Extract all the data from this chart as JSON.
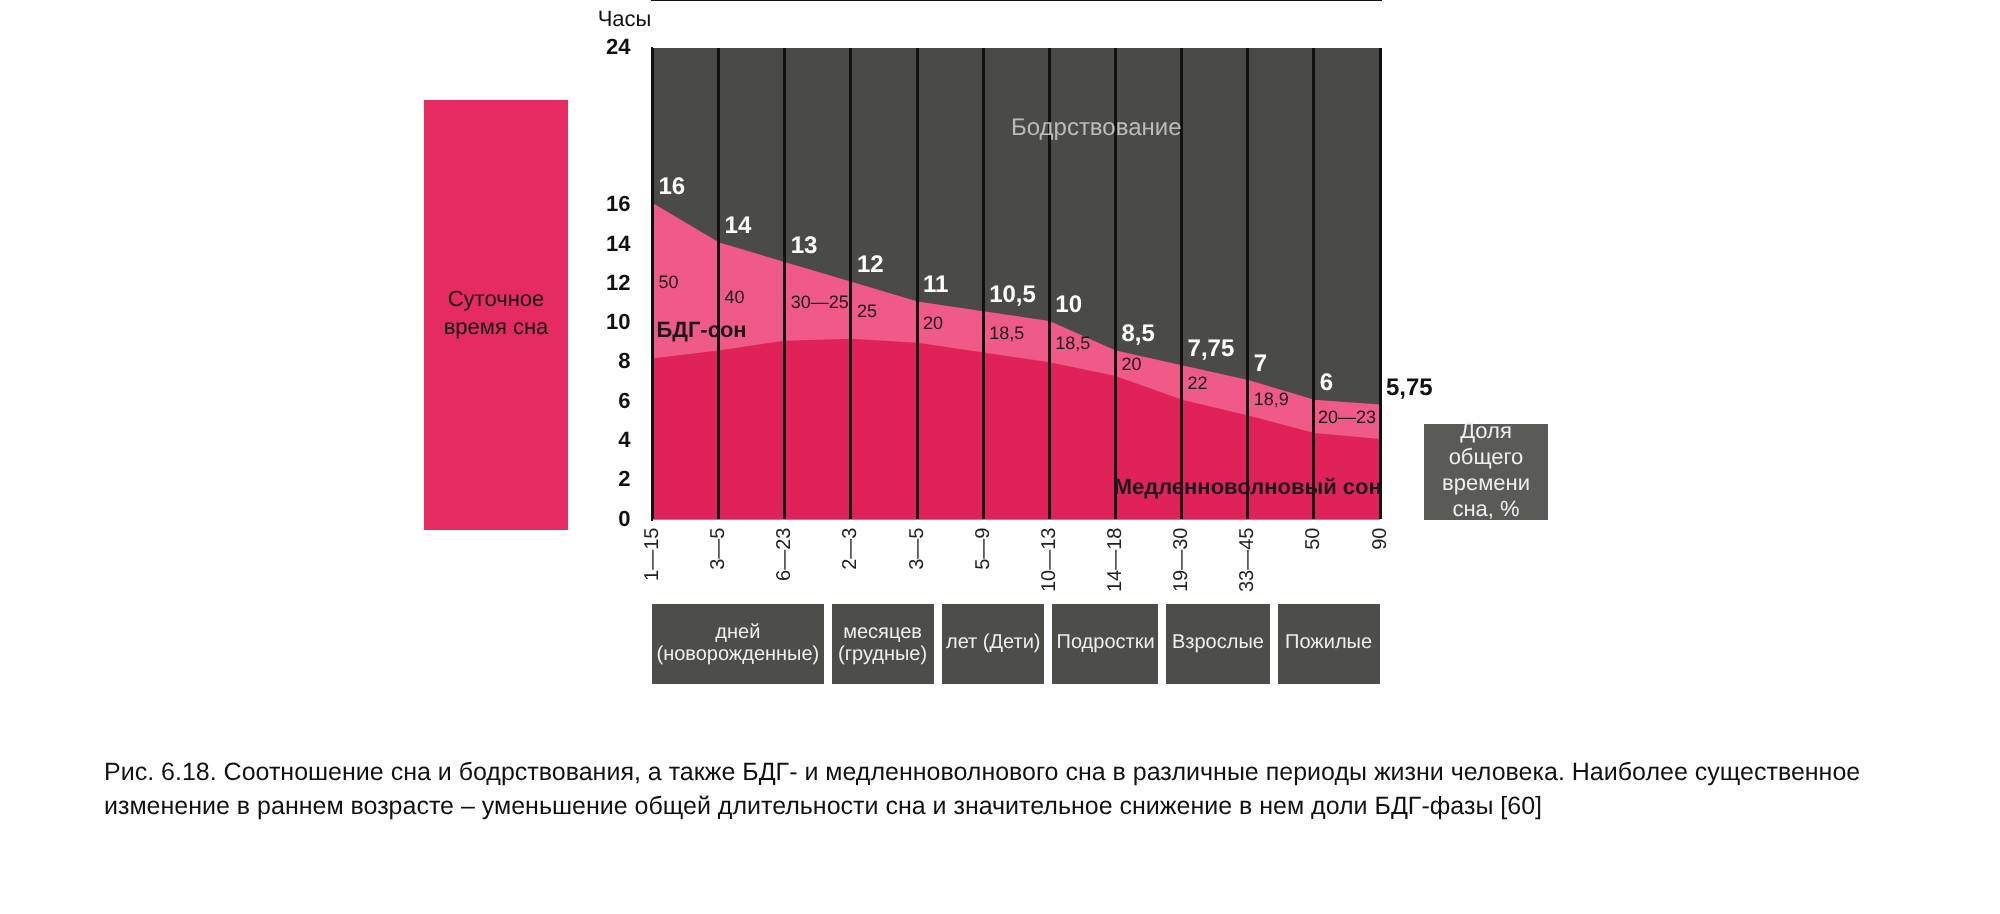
{
  "chart_data": {
    "type": "area",
    "title": "Рис. 6.18. Соотношение сна и бодрствования, а также БДГ- и медленноволнового сна в различные периоды жизни человека. Наиболее существенное изменение в раннем возрасте – уменьшение общей длительности сна и значительное снижение в нем доли БДГ-фазы [60]",
    "ylabel": "Часы",
    "categories": [
      "1—15",
      "3—5",
      "6—23",
      "2—3",
      "3—5",
      "5—9",
      "10—13",
      "14—18",
      "19—30",
      "33—45",
      "50",
      "90"
    ],
    "series": [
      {
        "name": "Медленноволновый сон",
        "color": "#e0215a",
        "values": [
          8.1,
          8.5,
          9.0,
          9.1,
          8.9,
          8.4,
          7.9,
          7.2,
          6.0,
          5.2,
          4.3,
          4.0
        ]
      },
      {
        "name": "БДГ-сон",
        "color": "#ef5a86",
        "values": [
          7.9,
          5.5,
          4.0,
          2.9,
          2.1,
          2.1,
          2.1,
          1.3,
          1.75,
          1.8,
          1.7,
          1.75
        ]
      }
    ],
    "totals": [
      "16",
      "14",
      "13",
      "12",
      "11",
      "10,5",
      "10",
      "8,5",
      "7,75",
      "7",
      "6",
      "5,75"
    ],
    "stacked": true,
    "ylim": [
      0,
      24
    ],
    "yticks": [
      0,
      2,
      4,
      6,
      8,
      10,
      12,
      14,
      16,
      24
    ],
    "grid": "x",
    "legend": false,
    "annotations": [
      "Бодрствование",
      "Суточное время сна",
      "Доля общего времени сна, %",
      "дней (новорожденные)",
      "месяцев (грудные)",
      "лет (Дети)",
      "Подростки",
      "Взрослые",
      "Пожилые",
      "50",
      "40",
      "30—25",
      "25",
      "20",
      "18,5",
      "18,5",
      "20",
      "22",
      "18,9",
      "20—23"
    ]
  }
}
